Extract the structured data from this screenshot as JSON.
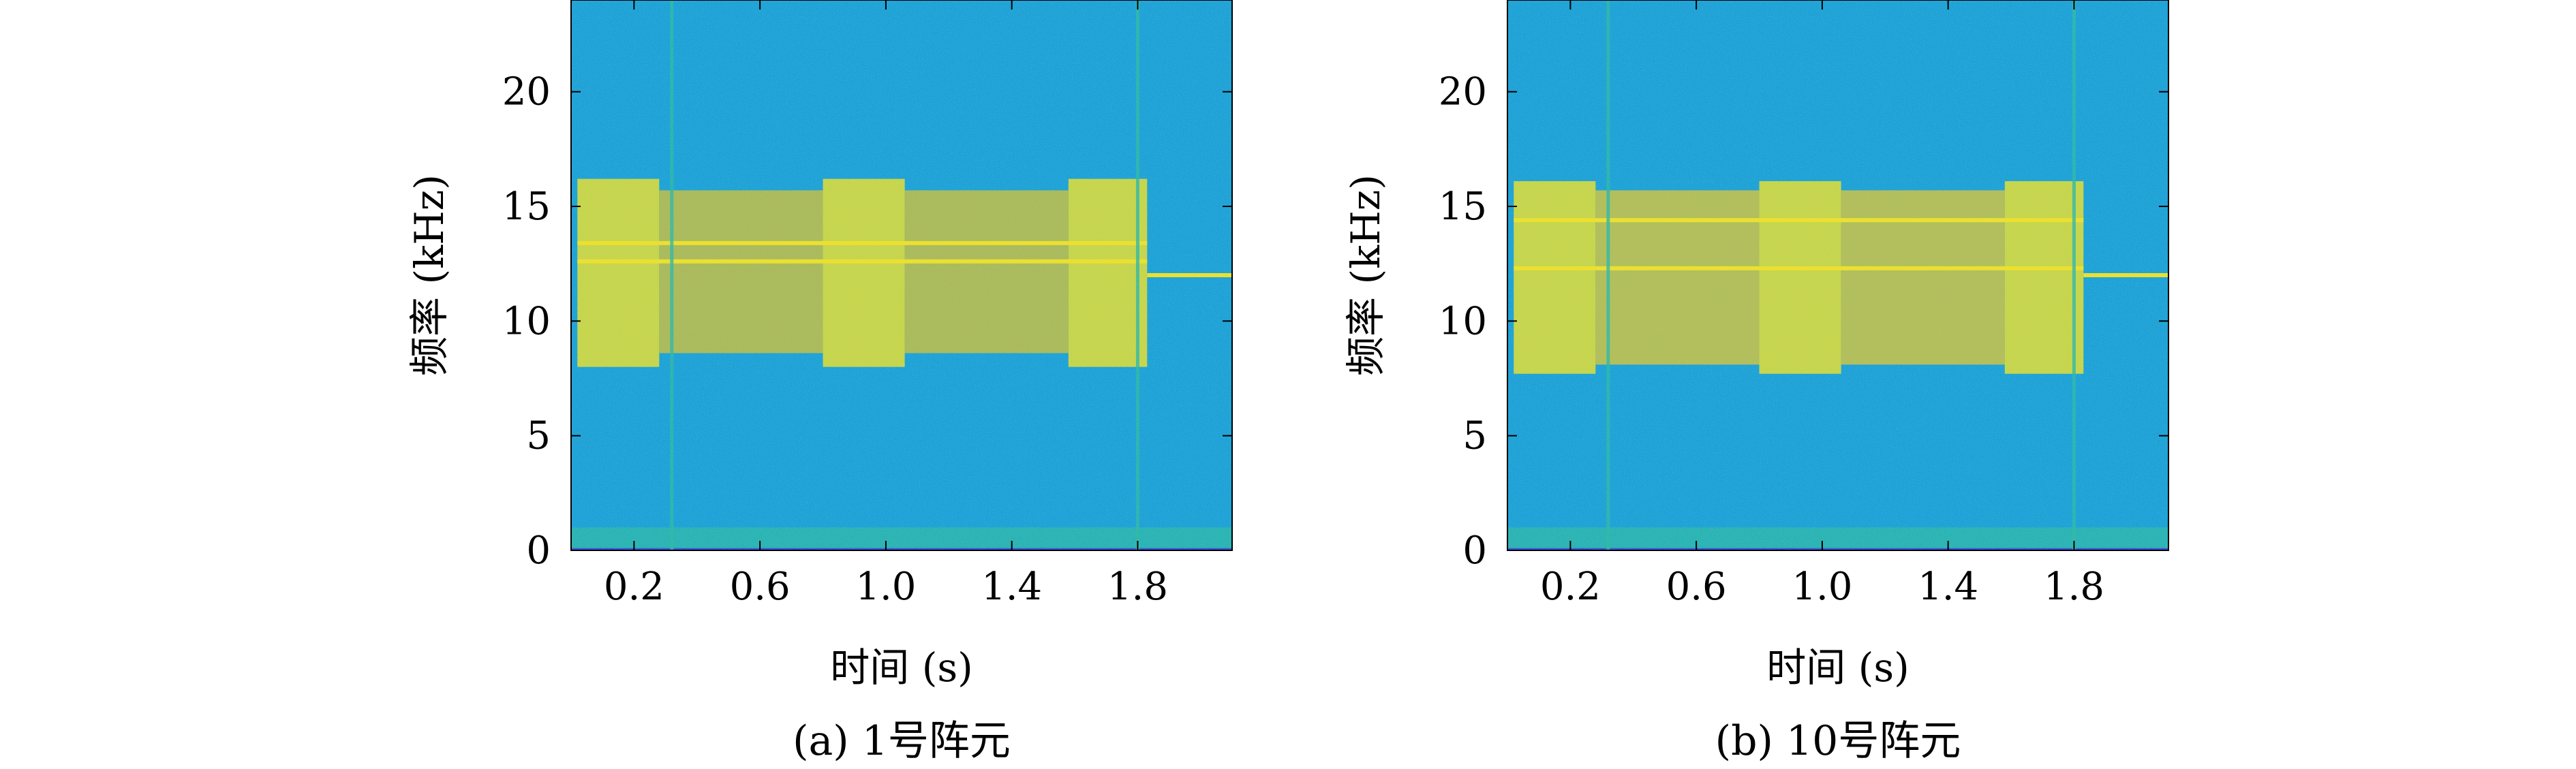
{
  "chart_data": [
    {
      "type": "heatmap",
      "caption": "(a) 1号阵元",
      "xlabel": "时间 (s)",
      "ylabel": "频率 (kHz)",
      "xlim": [
        0,
        2.1
      ],
      "ylim": [
        0,
        24
      ],
      "xticks": [
        0.2,
        0.6,
        1.0,
        1.4,
        1.8
      ],
      "xtick_labels": [
        "0.2",
        "0.6",
        "1.0",
        "1.4",
        "1.8"
      ],
      "yticks": [
        0,
        5,
        10,
        15,
        20
      ],
      "ytick_labels": [
        "0",
        "5",
        "10",
        "15",
        "20"
      ],
      "colormap": "parula",
      "colors": {
        "background": "#1e9fd8",
        "mid": "#2fb7a8",
        "band": "#cfbd3c",
        "peak": "#f3df28",
        "floor": "#3b4bd0"
      },
      "regions": [
        {
          "label": "bright",
          "t_start": 0.02,
          "t_end": 0.28,
          "f_low": 8.0,
          "f_high": 16.2
        },
        {
          "label": "mid",
          "t_start": 0.28,
          "t_end": 0.8,
          "f_low": 8.6,
          "f_high": 15.7
        },
        {
          "label": "bright",
          "t_start": 0.8,
          "t_end": 1.06,
          "f_low": 8.0,
          "f_high": 16.2
        },
        {
          "label": "mid",
          "t_start": 1.06,
          "t_end": 1.58,
          "f_low": 8.6,
          "f_high": 15.7
        },
        {
          "label": "bright",
          "t_start": 1.58,
          "t_end": 1.83,
          "f_low": 8.0,
          "f_high": 16.2
        },
        {
          "label": "low",
          "t_start": 0.0,
          "t_end": 2.1,
          "f_low": 0.1,
          "f_high": 1.0
        }
      ],
      "tones": [
        {
          "t_start": 0.02,
          "t_end": 1.83,
          "f": 13.4
        },
        {
          "t_start": 0.02,
          "t_end": 1.83,
          "f": 12.6
        },
        {
          "t_start": 1.83,
          "t_end": 2.1,
          "f": 12.0
        }
      ],
      "transients": [
        0.32,
        1.8
      ]
    },
    {
      "type": "heatmap",
      "caption": "(b) 10号阵元",
      "xlabel": "时间 (s)",
      "ylabel": "频率 (kHz)",
      "xlim": [
        0,
        2.1
      ],
      "ylim": [
        0,
        24
      ],
      "xticks": [
        0.2,
        0.6,
        1.0,
        1.4,
        1.8
      ],
      "xtick_labels": [
        "0.2",
        "0.6",
        "1.0",
        "1.4",
        "1.8"
      ],
      "yticks": [
        0,
        5,
        10,
        15,
        20
      ],
      "ytick_labels": [
        "0",
        "5",
        "10",
        "15",
        "20"
      ],
      "colormap": "parula",
      "colors": {
        "background": "#1e9fd8",
        "mid": "#2fb7a8",
        "band": "#d9c23a",
        "peak": "#f3df28",
        "floor": "#3b4bd0"
      },
      "regions": [
        {
          "label": "bright",
          "t_start": 0.02,
          "t_end": 0.28,
          "f_low": 7.7,
          "f_high": 16.1
        },
        {
          "label": "mid",
          "t_start": 0.28,
          "t_end": 0.8,
          "f_low": 8.1,
          "f_high": 15.7
        },
        {
          "label": "bright",
          "t_start": 0.8,
          "t_end": 1.06,
          "f_low": 7.7,
          "f_high": 16.1
        },
        {
          "label": "mid",
          "t_start": 1.06,
          "t_end": 1.58,
          "f_low": 8.1,
          "f_high": 15.7
        },
        {
          "label": "bright",
          "t_start": 1.58,
          "t_end": 1.83,
          "f_low": 7.7,
          "f_high": 16.1
        },
        {
          "label": "low",
          "t_start": 0.0,
          "t_end": 2.1,
          "f_low": 0.1,
          "f_high": 1.0
        }
      ],
      "tones": [
        {
          "t_start": 0.02,
          "t_end": 1.83,
          "f": 14.4
        },
        {
          "t_start": 0.02,
          "t_end": 1.83,
          "f": 12.3
        },
        {
          "t_start": 1.83,
          "t_end": 2.1,
          "f": 12.0
        }
      ],
      "transients": [
        0.32,
        1.8
      ]
    }
  ]
}
